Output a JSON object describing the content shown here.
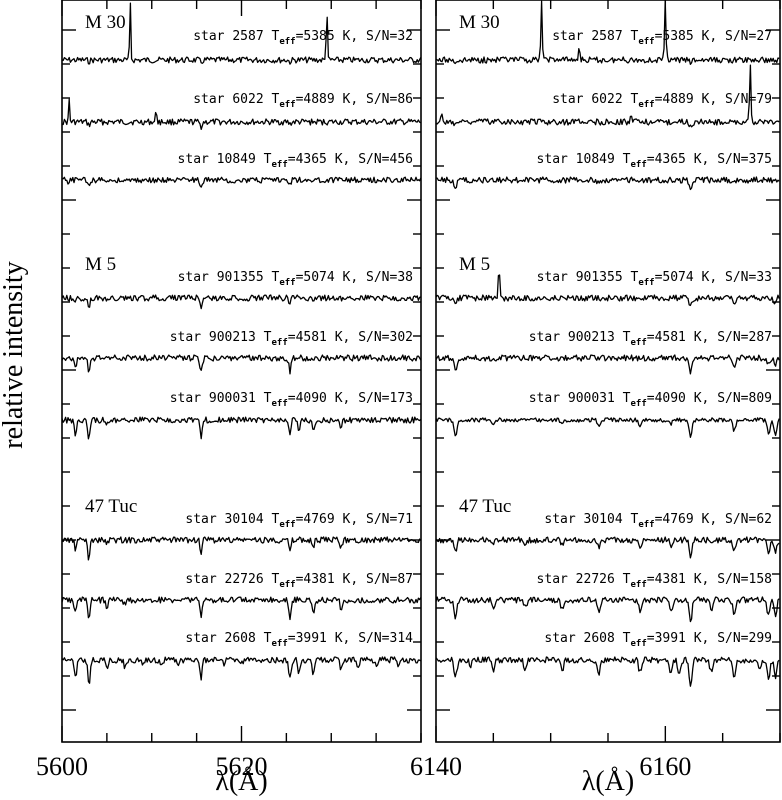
{
  "ylabel": "relative intensity",
  "chart_data": [
    {
      "type": "line",
      "panel": "left",
      "xlim": [
        5600,
        5640
      ],
      "xticks_major": [
        5600,
        5620
      ],
      "xtick_labels": [
        "5600",
        "5620"
      ],
      "xlabel": "λ(Å)",
      "groups": [
        {
          "cluster": "M 30",
          "stars": [
            {
              "label_id": "star 2587",
              "teff": "5385",
              "sn": "32",
              "lines": [
                {
                  "wl": 5615.5,
                  "depth": 0.1
                },
                {
                  "wl": 5625.4,
                  "depth": 0.07
                },
                {
                  "wl": 5603.0,
                  "depth": 0.05
                }
              ],
              "emissions": [
                {
                  "wl": 5607.6,
                  "height": 60
                },
                {
                  "wl": 5629.5,
                  "height": 60
                }
              ]
            },
            {
              "label_id": "star 6022",
              "teff": "4889",
              "sn": "86",
              "lines": [
                {
                  "wl": 5615.5,
                  "depth": 0.18
                },
                {
                  "wl": 5603.0,
                  "depth": 0.12
                },
                {
                  "wl": 5625.4,
                  "depth": 0.08
                }
              ],
              "emissions": [
                {
                  "wl": 5600.8,
                  "height": 22
                },
                {
                  "wl": 5610.5,
                  "height": 14
                }
              ]
            },
            {
              "label_id": "star 10849",
              "teff": "4365",
              "sn": "456",
              "lines": [
                {
                  "wl": 5615.5,
                  "depth": 0.3
                },
                {
                  "wl": 5603.0,
                  "depth": 0.2
                },
                {
                  "wl": 5600.7,
                  "depth": 0.1
                },
                {
                  "wl": 5625.4,
                  "depth": 0.1
                }
              ],
              "emissions": []
            }
          ]
        },
        {
          "cluster": "M 5",
          "stars": [
            {
              "label_id": "star 901355",
              "teff": "5074",
              "sn": "38",
              "lines": [
                {
                  "wl": 5603.0,
                  "depth": 0.4
                },
                {
                  "wl": 5615.5,
                  "depth": 0.35
                },
                {
                  "wl": 5601.5,
                  "depth": 0.2
                },
                {
                  "wl": 5625.4,
                  "depth": 0.2
                }
              ],
              "emissions": []
            },
            {
              "label_id": "star 900213",
              "teff": "4581",
              "sn": "302",
              "lines": [
                {
                  "wl": 5603.0,
                  "depth": 0.55
                },
                {
                  "wl": 5615.5,
                  "depth": 0.55
                },
                {
                  "wl": 5601.5,
                  "depth": 0.35
                },
                {
                  "wl": 5625.4,
                  "depth": 0.5
                },
                {
                  "wl": 5628.0,
                  "depth": 0.2
                }
              ],
              "emissions": []
            },
            {
              "label_id": "star 900031",
              "teff": "4090",
              "sn": "173",
              "lines": [
                {
                  "wl": 5603.0,
                  "depth": 0.7
                },
                {
                  "wl": 5615.5,
                  "depth": 0.7
                },
                {
                  "wl": 5601.5,
                  "depth": 0.6
                },
                {
                  "wl": 5625.4,
                  "depth": 0.6
                },
                {
                  "wl": 5626.4,
                  "depth": 0.4
                },
                {
                  "wl": 5628.0,
                  "depth": 0.5
                },
                {
                  "wl": 5631.1,
                  "depth": 0.25
                },
                {
                  "wl": 5605.0,
                  "depth": 0.2
                }
              ],
              "emissions": []
            }
          ]
        },
        {
          "cluster": "47 Tuc",
          "stars": [
            {
              "label_id": "star 30104",
              "teff": "4769",
              "sn": "71",
              "lines": [
                {
                  "wl": 5603.0,
                  "depth": 0.75
                },
                {
                  "wl": 5615.5,
                  "depth": 0.45
                },
                {
                  "wl": 5601.5,
                  "depth": 0.35
                },
                {
                  "wl": 5625.4,
                  "depth": 0.45
                },
                {
                  "wl": 5628.0,
                  "depth": 0.3
                },
                {
                  "wl": 5631.1,
                  "depth": 0.25
                },
                {
                  "wl": 5605.0,
                  "depth": 0.15
                }
              ],
              "emissions": []
            },
            {
              "label_id": "star 22726",
              "teff": "4381",
              "sn": "87",
              "lines": [
                {
                  "wl": 5603.0,
                  "depth": 0.85
                },
                {
                  "wl": 5615.5,
                  "depth": 0.7
                },
                {
                  "wl": 5601.5,
                  "depth": 0.55
                },
                {
                  "wl": 5625.4,
                  "depth": 0.7
                },
                {
                  "wl": 5628.0,
                  "depth": 0.5
                },
                {
                  "wl": 5631.1,
                  "depth": 0.35
                },
                {
                  "wl": 5605.0,
                  "depth": 0.25
                },
                {
                  "wl": 5607.0,
                  "depth": 0.15
                }
              ],
              "emissions": []
            },
            {
              "label_id": "star 2608",
              "teff": "3991",
              "sn": "314",
              "lines": [
                {
                  "wl": 5603.0,
                  "depth": 0.95
                },
                {
                  "wl": 5615.5,
                  "depth": 0.7
                },
                {
                  "wl": 5601.5,
                  "depth": 0.7
                },
                {
                  "wl": 5625.4,
                  "depth": 0.75
                },
                {
                  "wl": 5626.4,
                  "depth": 0.5
                },
                {
                  "wl": 5628.0,
                  "depth": 0.65
                },
                {
                  "wl": 5631.1,
                  "depth": 0.4
                },
                {
                  "wl": 5605.0,
                  "depth": 0.35
                },
                {
                  "wl": 5607.0,
                  "depth": 0.25
                },
                {
                  "wl": 5609.0,
                  "depth": 0.15
                },
                {
                  "wl": 5611.0,
                  "depth": 0.15
                },
                {
                  "wl": 5613.0,
                  "depth": 0.15
                },
                {
                  "wl": 5618.0,
                  "depth": 0.15
                },
                {
                  "wl": 5620.0,
                  "depth": 0.15
                },
                {
                  "wl": 5633.0,
                  "depth": 0.25
                },
                {
                  "wl": 5635.0,
                  "depth": 0.2
                },
                {
                  "wl": 5637.5,
                  "depth": 0.25
                }
              ],
              "emissions": []
            }
          ]
        }
      ]
    },
    {
      "type": "line",
      "panel": "right",
      "xlim": [
        6140,
        6170
      ],
      "xticks_major": [
        6140,
        6160
      ],
      "xtick_labels": [
        "6140",
        "6160"
      ],
      "xlabel": "λ(Å)",
      "groups": [
        {
          "cluster": "M 30",
          "stars": [
            {
              "label_id": "star 2587",
              "teff": "5385",
              "sn": "27",
              "lines": [
                {
                  "wl": 6162.2,
                  "depth": 0.1
                },
                {
                  "wl": 6141.7,
                  "depth": 0.06
                }
              ],
              "emissions": [
                {
                  "wl": 6149.2,
                  "height": 60
                },
                {
                  "wl": 6160.0,
                  "height": 60
                },
                {
                  "wl": 6152.5,
                  "height": 15
                }
              ]
            },
            {
              "label_id": "star 6022",
              "teff": "4889",
              "sn": "79",
              "lines": [
                {
                  "wl": 6162.2,
                  "depth": 0.16
                },
                {
                  "wl": 6141.7,
                  "depth": 0.12
                }
              ],
              "emissions": [
                {
                  "wl": 6167.4,
                  "height": 60
                },
                {
                  "wl": 6157.0,
                  "height": 10
                },
                {
                  "wl": 6140.5,
                  "height": 8
                }
              ]
            },
            {
              "label_id": "star 10849",
              "teff": "4365",
              "sn": "375",
              "lines": [
                {
                  "wl": 6141.7,
                  "depth": 0.28
                },
                {
                  "wl": 6162.2,
                  "depth": 0.28
                },
                {
                  "wl": 6154.2,
                  "depth": 0.08
                },
                {
                  "wl": 6166.0,
                  "depth": 0.06
                }
              ],
              "emissions": []
            }
          ]
        },
        {
          "cluster": "M 5",
          "stars": [
            {
              "label_id": "star 901355",
              "teff": "5074",
              "sn": "33",
              "lines": [
                {
                  "wl": 6162.2,
                  "depth": 0.35
                },
                {
                  "wl": 6141.7,
                  "depth": 0.3
                },
                {
                  "wl": 6166.0,
                  "depth": 0.2
                },
                {
                  "wl": 6169.5,
                  "depth": 0.2
                }
              ],
              "emissions": [
                {
                  "wl": 6145.5,
                  "height": 32
                }
              ]
            },
            {
              "label_id": "star 900213",
              "teff": "4581",
              "sn": "287",
              "lines": [
                {
                  "wl": 6162.2,
                  "depth": 0.55
                },
                {
                  "wl": 6141.7,
                  "depth": 0.45
                },
                {
                  "wl": 6166.0,
                  "depth": 0.3
                },
                {
                  "wl": 6169.0,
                  "depth": 0.3
                },
                {
                  "wl": 6169.6,
                  "depth": 0.3
                }
              ],
              "emissions": []
            },
            {
              "label_id": "star 900031",
              "teff": "4090",
              "sn": "809",
              "lines": [
                {
                  "wl": 6141.7,
                  "depth": 0.7
                },
                {
                  "wl": 6162.2,
                  "depth": 0.7
                },
                {
                  "wl": 6166.0,
                  "depth": 0.45
                },
                {
                  "wl": 6169.0,
                  "depth": 0.55
                },
                {
                  "wl": 6169.6,
                  "depth": 0.6
                },
                {
                  "wl": 6145.0,
                  "depth": 0.15
                },
                {
                  "wl": 6151.0,
                  "depth": 0.15
                },
                {
                  "wl": 6154.2,
                  "depth": 0.2
                },
                {
                  "wl": 6157.8,
                  "depth": 0.2
                },
                {
                  "wl": 6160.5,
                  "depth": 0.15
                }
              ],
              "emissions": []
            }
          ]
        },
        {
          "cluster": "47 Tuc",
          "stars": [
            {
              "label_id": "star 30104",
              "teff": "4769",
              "sn": "62",
              "lines": [
                {
                  "wl": 6141.7,
                  "depth": 0.4
                },
                {
                  "wl": 6162.2,
                  "depth": 0.65
                },
                {
                  "wl": 6166.0,
                  "depth": 0.4
                },
                {
                  "wl": 6169.0,
                  "depth": 0.45
                },
                {
                  "wl": 6169.6,
                  "depth": 0.45
                },
                {
                  "wl": 6145.0,
                  "depth": 0.2
                },
                {
                  "wl": 6147.8,
                  "depth": 0.2
                },
                {
                  "wl": 6151.0,
                  "depth": 0.2
                },
                {
                  "wl": 6154.2,
                  "depth": 0.25
                },
                {
                  "wl": 6157.8,
                  "depth": 0.25
                },
                {
                  "wl": 6160.5,
                  "depth": 0.2
                },
                {
                  "wl": 6164.0,
                  "depth": 0.2
                }
              ],
              "emissions": []
            },
            {
              "label_id": "star 22726",
              "teff": "4381",
              "sn": "158",
              "lines": [
                {
                  "wl": 6141.7,
                  "depth": 0.65
                },
                {
                  "wl": 6162.2,
                  "depth": 0.9
                },
                {
                  "wl": 6166.0,
                  "depth": 0.55
                },
                {
                  "wl": 6169.0,
                  "depth": 0.6
                },
                {
                  "wl": 6169.6,
                  "depth": 0.6
                },
                {
                  "wl": 6145.0,
                  "depth": 0.35
                },
                {
                  "wl": 6147.8,
                  "depth": 0.3
                },
                {
                  "wl": 6151.0,
                  "depth": 0.35
                },
                {
                  "wl": 6154.2,
                  "depth": 0.4
                },
                {
                  "wl": 6157.8,
                  "depth": 0.4
                },
                {
                  "wl": 6160.5,
                  "depth": 0.4
                },
                {
                  "wl": 6164.0,
                  "depth": 0.35
                }
              ],
              "emissions": []
            },
            {
              "label_id": "star 2608",
              "teff": "3991",
              "sn": "299",
              "lines": [
                {
                  "wl": 6141.7,
                  "depth": 0.7
                },
                {
                  "wl": 6162.2,
                  "depth": 0.95
                },
                {
                  "wl": 6166.0,
                  "depth": 0.65
                },
                {
                  "wl": 6169.0,
                  "depth": 0.7
                },
                {
                  "wl": 6169.6,
                  "depth": 0.7
                },
                {
                  "wl": 6143.0,
                  "depth": 0.2
                },
                {
                  "wl": 6145.0,
                  "depth": 0.45
                },
                {
                  "wl": 6147.8,
                  "depth": 0.4
                },
                {
                  "wl": 6151.0,
                  "depth": 0.45
                },
                {
                  "wl": 6154.2,
                  "depth": 0.5
                },
                {
                  "wl": 6157.8,
                  "depth": 0.5
                },
                {
                  "wl": 6160.5,
                  "depth": 0.55
                },
                {
                  "wl": 6161.2,
                  "depth": 0.45
                },
                {
                  "wl": 6164.0,
                  "depth": 0.45
                },
                {
                  "wl": 6168.2,
                  "depth": 0.4
                }
              ],
              "emissions": []
            }
          ]
        }
      ]
    }
  ]
}
